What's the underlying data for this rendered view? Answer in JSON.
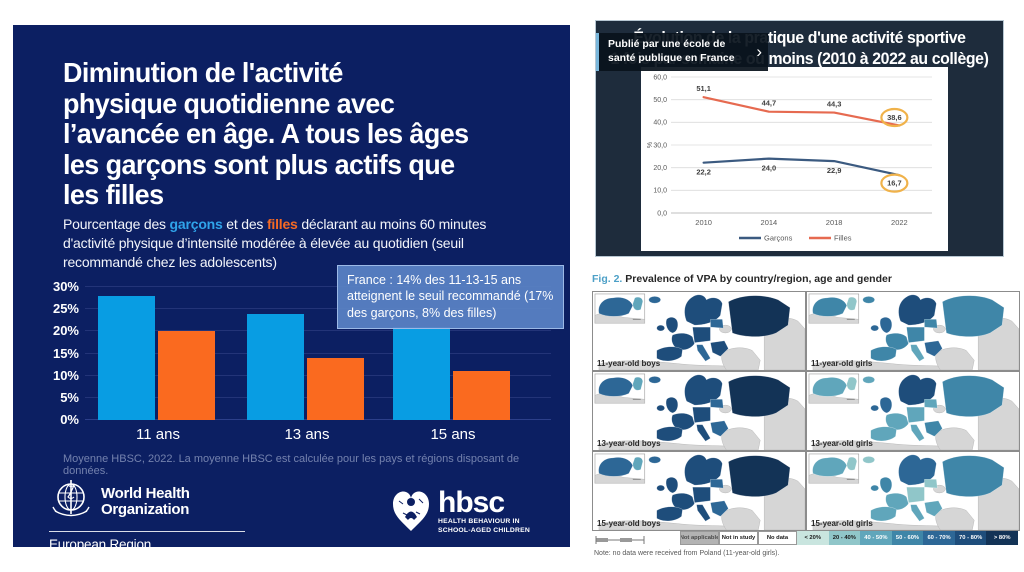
{
  "slide": {
    "title": "Diminution de l'activité\nphysique quotidienne avec\nl’avancée en âge. A tous les âges\nles garçons sont plus actifs que\nles filles",
    "subtitle": {
      "part1": "Pourcentage des ",
      "boys": "garçons",
      "part2": " et des ",
      "girls": "filles",
      "part3": " déclarant au moins 60 minutes d'activité physique d’intensité modérée à élevée au quotidien (seuil recommandé chez les adolescents)"
    },
    "callout": "France : 14% des 11-13-15 ans atteignent le seuil recommandé (17% des garçons, 8% des filles)",
    "footnote": "Moyenne HBSC, 2022. La moyenne HBSC est calculée pour les pays et régions disposant de données.",
    "who_logo": {
      "name": "World Health\nOrganization",
      "region": "European Region"
    },
    "hbsc_logo": {
      "name": "hbsc",
      "subtitle": "HEALTH BEHAVIOUR IN\nSCHOOL-AGED CHILDREN"
    },
    "colors": {
      "background": "#0c1f62",
      "boys": "#089de3",
      "girls": "#fa6a1f",
      "callout_bg": "#5b83c5"
    }
  },
  "video": {
    "tooltip": "Publié par une école de santé publique en France",
    "next_chevron": "›"
  },
  "chart_data": [
    {
      "id": "slide-bar-chart",
      "type": "bar",
      "title": "Pourcentage des garçons et des filles déclarant au moins 60 minutes d'activité physique d’intensité modérée à élevée au quotidien",
      "categories": [
        "11 ans",
        "13 ans",
        "15 ans"
      ],
      "series": [
        {
          "name": "garçons",
          "color": "#089de3",
          "values": [
            28,
            24,
            21
          ]
        },
        {
          "name": "filles",
          "color": "#fa6a1f",
          "values": [
            20,
            14,
            11
          ]
        }
      ],
      "ylim": [
        0,
        30
      ],
      "ytick_step": 5,
      "yticks": [
        "0%",
        "5%",
        "10%",
        "15%",
        "20%",
        "25%",
        "30%"
      ],
      "grid": true,
      "legend_position": "none"
    },
    {
      "id": "video-line-chart",
      "type": "line",
      "title": "Évolution de la pratique d'une activité sportive\n1 fois par semaine ou moins (2010 à 2022 au collège)",
      "x": [
        "2010",
        "2014",
        "2018",
        "2022"
      ],
      "series": [
        {
          "name": "Garçons",
          "color": "#3b5a80",
          "values": [
            22.2,
            24.0,
            22.9,
            16.7
          ],
          "labels": [
            "22,2",
            "24,0",
            "22,9",
            "16,7"
          ],
          "label_side": "below"
        },
        {
          "name": "Filles",
          "color": "#e66a50",
          "values": [
            51.1,
            44.7,
            44.3,
            38.6
          ],
          "labels": [
            "51,1",
            "44,7",
            "44,3",
            "38,6"
          ],
          "label_side": "above"
        }
      ],
      "ylim": [
        0,
        60
      ],
      "yticks": [
        "0,0",
        "10,0",
        "20,0",
        "30,0",
        "40,0",
        "50,0",
        "60,0"
      ],
      "ylabel": "%",
      "grid": true,
      "legend_position": "bottom",
      "highlight_last_point": true,
      "highlight_color": "#f0b24a"
    }
  ],
  "figure": {
    "label": "Fig. 2.",
    "title": " Prevalence of VPA by country/region, age and gender",
    "note": "Note: no data were received from Poland (11-year-old girls).",
    "maps": [
      {
        "label": "11-year-old boys",
        "colors": {
          "canada": "#2d6796",
          "greenland": "#60a6bb",
          "iceland": "#2d6796",
          "uk": "#1e4d7b",
          "scandinavia": "#1e4d7b",
          "baltics": "#2d6796",
          "france": "#1e4d7b",
          "iberia": "#1e4d7b",
          "central": "#1e4d7b",
          "italy": "#2d6796",
          "balkans": "#1e4d7b",
          "russia": "#133356"
        }
      },
      {
        "label": "11-year-old girls",
        "colors": {
          "canada": "#3f86a8",
          "greenland": "#90c6c9",
          "iceland": "#3f86a8",
          "uk": "#2d6796",
          "scandinavia": "#1e4d7b",
          "baltics": "#3f86a8",
          "france": "#3f86a8",
          "iberia": "#3f86a8",
          "central": "#3f86a8",
          "italy": "#60a6bb",
          "balkans": "#2d6796",
          "russia": "#3f86a8"
        }
      },
      {
        "label": "13-year-old boys",
        "colors": {
          "canada": "#2d6796",
          "greenland": "#60a6bb",
          "iceland": "#2d6796",
          "uk": "#1e4d7b",
          "scandinavia": "#1e4d7b",
          "baltics": "#2d6796",
          "france": "#1e4d7b",
          "iberia": "#1e4d7b",
          "central": "#1e4d7b",
          "italy": "#1e4d7b",
          "balkans": "#2d6796",
          "russia": "#133356"
        }
      },
      {
        "label": "13-year-old girls",
        "colors": {
          "canada": "#60a6bb",
          "greenland": "#90c6c9",
          "iceland": "#60a6bb",
          "uk": "#2d6796",
          "scandinavia": "#1e4d7b",
          "baltics": "#60a6bb",
          "france": "#60a6bb",
          "iberia": "#60a6bb",
          "central": "#60a6bb",
          "italy": "#60a6bb",
          "balkans": "#3f86a8",
          "russia": "#3f86a8"
        }
      },
      {
        "label": "15-year-old boys",
        "colors": {
          "canada": "#2d6796",
          "greenland": "#60a6bb",
          "iceland": "#2d6796",
          "uk": "#1e4d7b",
          "scandinavia": "#1e4d7b",
          "baltics": "#2d6796",
          "france": "#1e4d7b",
          "iberia": "#1e4d7b",
          "central": "#1e4d7b",
          "italy": "#1e4d7b",
          "balkans": "#2d6796",
          "russia": "#133356"
        }
      },
      {
        "label": "15-year-old girls",
        "colors": {
          "canada": "#60a6bb",
          "greenland": "#90c6c9",
          "iceland": "#90c6c9",
          "uk": "#3f86a8",
          "scandinavia": "#2d6796",
          "baltics": "#90c6c9",
          "france": "#60a6bb",
          "iberia": "#60a6bb",
          "central": "#90c6c9",
          "italy": "#60a6bb",
          "balkans": "#60a6bb",
          "russia": "#3f86a8"
        }
      }
    ],
    "legend": [
      {
        "label": "Not applicable",
        "bg": "#b3b3b3",
        "fg": "#4a4a4a",
        "border": "#999999",
        "wide": true
      },
      {
        "label": "Not in study",
        "bg": "#ffffff",
        "fg": "#1a1a1a",
        "border": "#999999",
        "wide": true
      },
      {
        "label": "No data",
        "bg": "#ffffff",
        "fg": "#1a1a1a",
        "border": "#999999",
        "wide": true
      },
      {
        "label": "< 20%",
        "bg": "#c9e5df",
        "fg": "#1a1a1a",
        "border": "#c9e5df"
      },
      {
        "label": "20 - 40%",
        "bg": "#90c6c9",
        "fg": "#1a1a1a",
        "border": "#90c6c9"
      },
      {
        "label": "40 - 50%",
        "bg": "#60a6bb",
        "fg": "#ffffff",
        "border": "#60a6bb"
      },
      {
        "label": "50 - 60%",
        "bg": "#3f86a8",
        "fg": "#ffffff",
        "border": "#3f86a8"
      },
      {
        "label": "60 - 70%",
        "bg": "#2d6796",
        "fg": "#ffffff",
        "border": "#2d6796"
      },
      {
        "label": "70 - 80%",
        "bg": "#1e4d7b",
        "fg": "#ffffff",
        "border": "#1e4d7b"
      },
      {
        "label": "> 80%",
        "bg": "#133356",
        "fg": "#ffffff",
        "border": "#133356"
      }
    ]
  }
}
